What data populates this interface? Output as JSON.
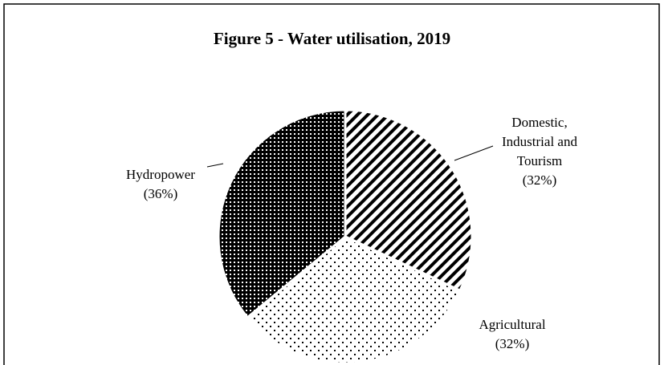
{
  "chart_data": {
    "type": "pie",
    "title": "Figure 5 - Water utilisation, 2019",
    "categories": [
      "Domestic, Industrial and Tourism",
      "Agricultural",
      "Hydropower"
    ],
    "values": [
      32,
      32,
      36
    ],
    "value_labels": [
      "(32%)",
      "(32%)",
      "(36%)"
    ]
  }
}
